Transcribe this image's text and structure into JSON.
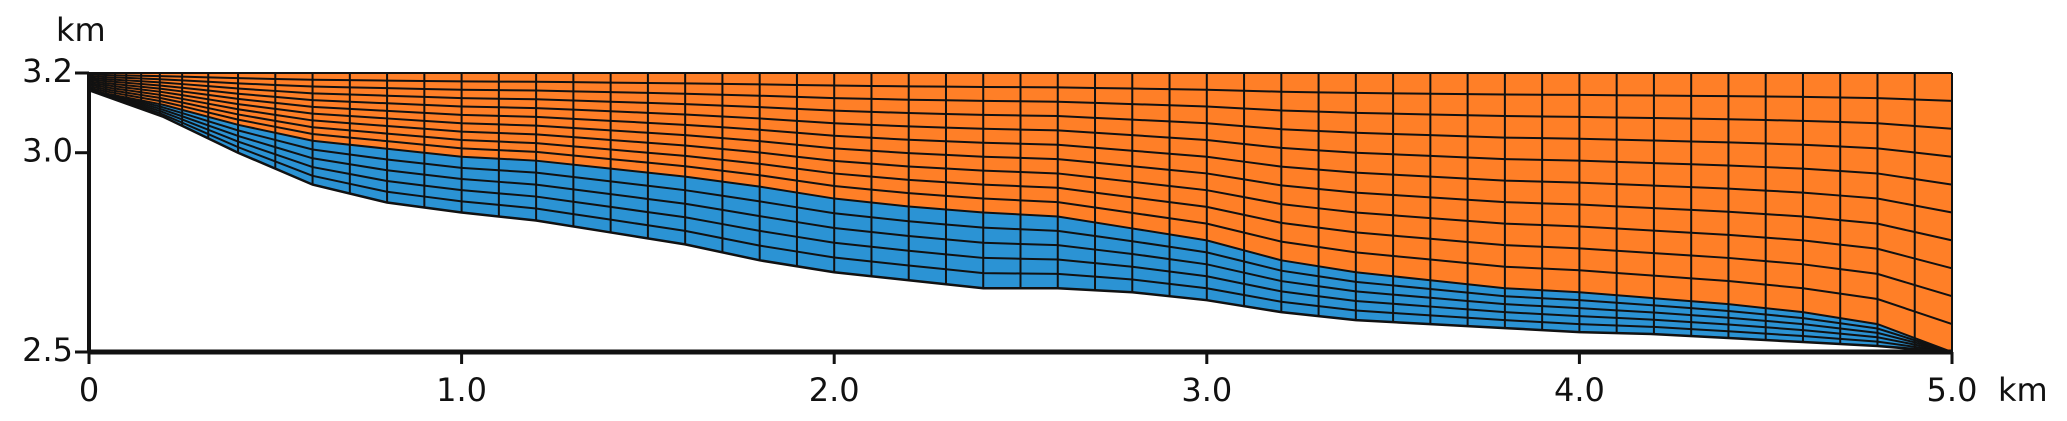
{
  "chart_data": {
    "type": "mesh",
    "x_unit": "km",
    "y_unit": "km",
    "x": [
      0,
      0.2,
      0.4,
      0.6,
      0.8,
      1.0,
      1.2,
      1.4,
      1.6,
      1.8,
      2.0,
      2.2,
      2.4,
      2.6,
      2.8,
      3.0,
      3.2,
      3.4,
      3.6,
      3.8,
      4.0,
      4.2,
      4.4,
      4.6,
      4.8,
      5.0
    ],
    "series": [
      {
        "color": "#2b93d4",
        "values": [
          3.157,
          3.09,
          3.0,
          2.92,
          2.875,
          2.85,
          2.83,
          2.8,
          2.77,
          2.73,
          2.7,
          2.68,
          2.66,
          2.66,
          2.65,
          2.63,
          2.6,
          2.58,
          2.57,
          2.56,
          2.55,
          2.545,
          2.535,
          2.525,
          2.515,
          2.5
        ]
      },
      {
        "color": "#ff7f27",
        "values": [
          3.157,
          3.12,
          3.07,
          3.03,
          3.01,
          2.99,
          2.98,
          2.96,
          2.94,
          2.915,
          2.885,
          2.865,
          2.85,
          2.84,
          2.81,
          2.78,
          2.73,
          2.7,
          2.68,
          2.66,
          2.65,
          2.635,
          2.62,
          2.6,
          2.57,
          2.5
        ]
      }
    ],
    "xlim": [
      0,
      5
    ],
    "ylim": [
      2.5,
      3.2
    ],
    "xticks": [
      0,
      {
        "value": 1,
        "label": "1.0"
      },
      {
        "value": 2,
        "label": "2.0"
      },
      {
        "value": 3,
        "label": "3.0"
      },
      {
        "value": 4,
        "label": "4.0"
      },
      {
        "value": 5,
        "label": "5.0"
      }
    ],
    "yticks": [
      2.5,
      {
        "value": 3,
        "label": "3.0"
      },
      3.2
    ],
    "mesh_color": "#111111"
  }
}
